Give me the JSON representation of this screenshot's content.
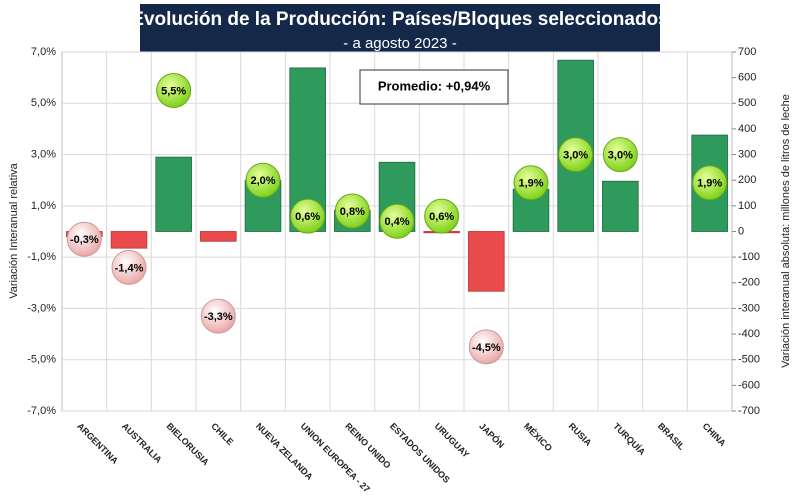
{
  "chart_data": {
    "type": "bar",
    "title": "Evolución de la Producción: Países/Bloques seleccionados",
    "subtitle": "- a agosto 2023 -",
    "annotation": "Promedio: +0,94%",
    "ylabel": "Variación Interanual relativa",
    "y2label": "Variación interanual absoluta: millones de litros de leche",
    "categories": [
      "ARGENTINA",
      "AUSTRALIA",
      "BIELORUSIA",
      "CHILE",
      "NUEVA ZELANDA",
      "UNION EUROPEA - 27",
      "REINO UNIDO",
      "ESTADOS UNIDOS",
      "URUGUAY",
      "JAPÓN",
      "MÉXICO",
      "RUSIA",
      "TURQUÍA",
      "BRASIL",
      "CHINA"
    ],
    "series": [
      {
        "type": "bar",
        "axis": "y2",
        "color": "#2e9a5c",
        "negative_color": "#e94b4b",
        "values": [
          -20,
          -65,
          290,
          -38,
          200,
          638,
          83,
          270,
          -5,
          -233,
          165,
          668,
          196,
          null,
          376
        ]
      },
      {
        "type": "bubble",
        "axis": "y",
        "color": "#9de433",
        "negative_color": "#f7cccc",
        "values": [
          -0.3,
          -1.4,
          5.5,
          -3.3,
          2.0,
          0.6,
          0.8,
          0.4,
          0.6,
          -4.5,
          1.9,
          3.0,
          3.0,
          null,
          1.9
        ],
        "value_labels": [
          "-0,3%",
          "-1,4%",
          "5,5%",
          "-3,3%",
          "2,0%",
          "0,6%",
          "0,8%",
          "0,4%",
          "0,6%",
          "-4,5%",
          "1,9%",
          "3,0%",
          "3,0%",
          null,
          "1,9%"
        ]
      }
    ],
    "ylim": [
      -7,
      7
    ],
    "yticks": [
      {
        "value": -7,
        "label": "-7,0%"
      },
      {
        "value": -5,
        "label": "-5,0%"
      },
      {
        "value": -3,
        "label": "-3,0%"
      },
      {
        "value": -1,
        "label": "-1,0%"
      },
      {
        "value": 1,
        "label": "1,0%"
      },
      {
        "value": 3,
        "label": "3,0%"
      },
      {
        "value": 5,
        "label": "5,0%"
      },
      {
        "value": 7,
        "label": "7,0%"
      }
    ],
    "y2lim": [
      -700,
      700
    ],
    "y2ticks": [
      -700,
      -600,
      -500,
      -400,
      -300,
      -200,
      -100,
      0,
      100,
      200,
      300,
      400,
      500,
      600,
      700
    ],
    "grid": true
  }
}
